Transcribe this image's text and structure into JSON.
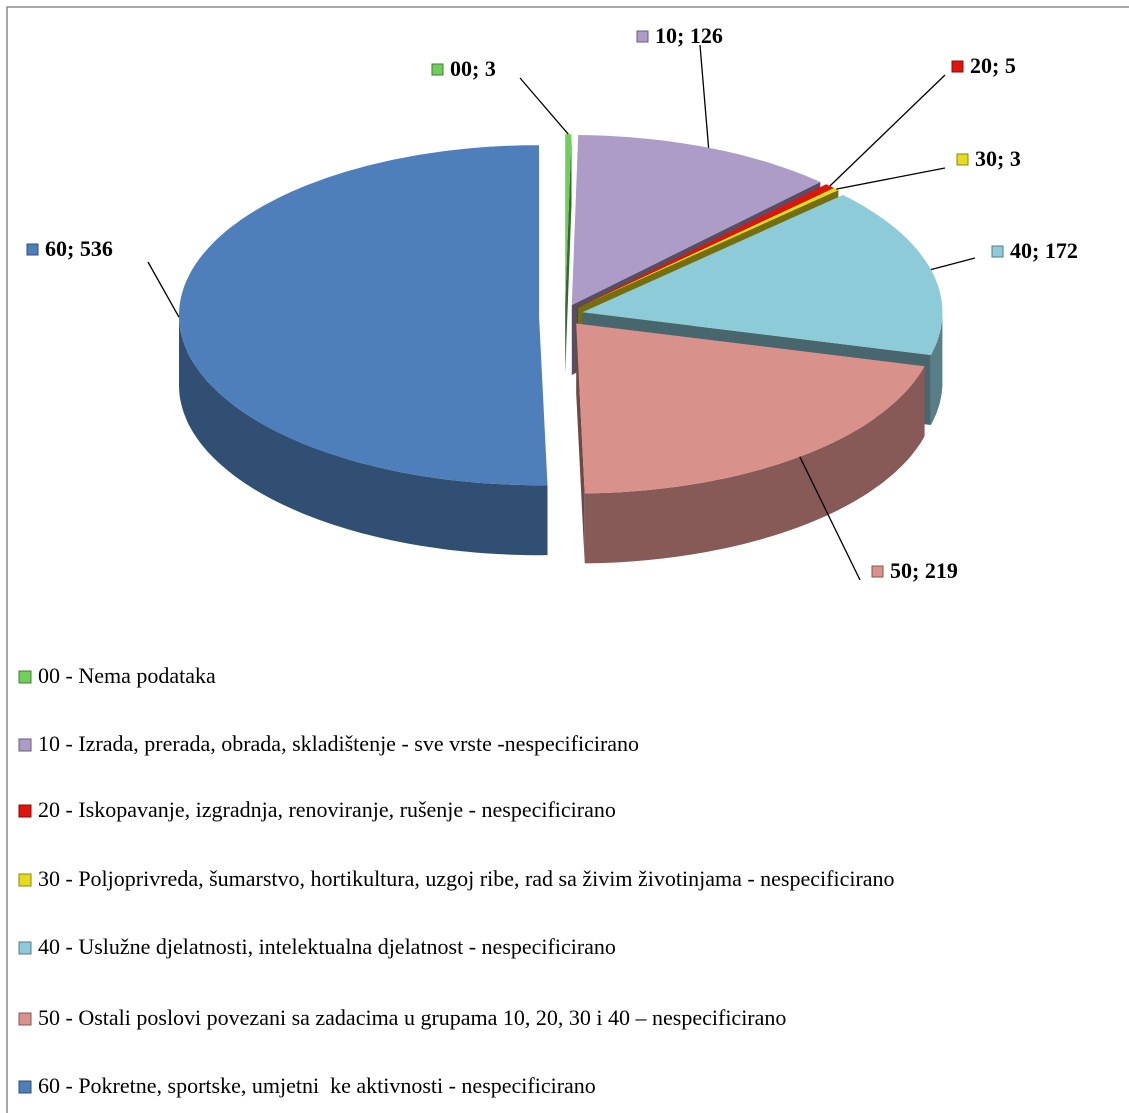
{
  "chart_data": {
    "type": "pie",
    "categories": [
      "00 - Nema podataka",
      "10 - Izrada, prerada, obrada, skladištenje - sve vrste -nespecificirano",
      "20 - Iskopavanje, izgradnja, renoviranje, rušenje - nespecificirano",
      "30 - Poljoprivreda, šumarstvo, hortikultura, uzgoj ribe, rad sa živim životinjama - nespecificirano",
      "40 - Uslužne djelatnosti, intelektualna djelatnost - nespecificirano",
      "50 - Ostali poslovi povezani sa zadacima u grupama 10, 20, 30 i 40 – nespecificirano",
      "60 - Pokretne, sportske, umjetni  ke aktivnosti - nespecificirano"
    ],
    "values": [
      3,
      126,
      5,
      3,
      172,
      219,
      536
    ],
    "value_labels": [
      "00; 3",
      "10; 126",
      "20; 5",
      "30; 3",
      "40; 172",
      "50; 219",
      "60; 536"
    ],
    "colors": [
      "#6fcf5a",
      "#ae9cc8",
      "#e0140c",
      "#e6dc1e",
      "#8ecbd9",
      "#d9918c",
      "#4f7fba"
    ],
    "legend": "bottom"
  }
}
